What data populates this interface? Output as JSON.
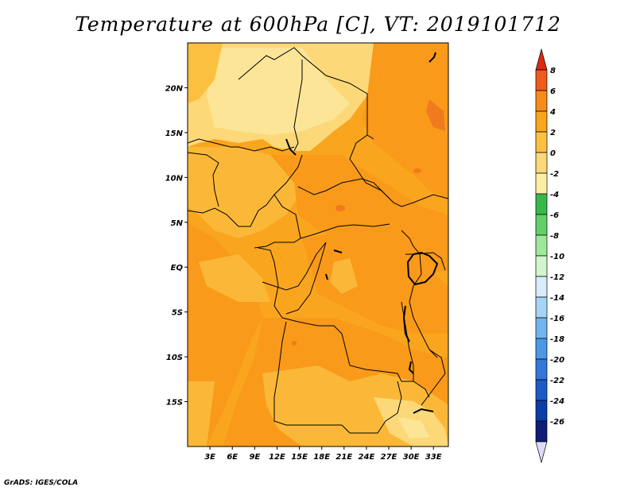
{
  "title": "Temperature at 600hPa [C], VT: 2019101712",
  "credit": "GrADS: IGES/COLA",
  "map": {
    "lon_range": [
      0,
      35
    ],
    "lat_range": [
      -20,
      25
    ],
    "lat_ticks": [
      {
        "value": 20,
        "label": "20N"
      },
      {
        "value": 15,
        "label": "15N"
      },
      {
        "value": 10,
        "label": "10N"
      },
      {
        "value": 5,
        "label": "5N"
      },
      {
        "value": 0,
        "label": "EQ"
      },
      {
        "value": -5,
        "label": "5S"
      },
      {
        "value": -10,
        "label": "10S"
      },
      {
        "value": -15,
        "label": "15S"
      }
    ],
    "lon_ticks": [
      {
        "value": 3,
        "label": "3E"
      },
      {
        "value": 6,
        "label": "6E"
      },
      {
        "value": 9,
        "label": "9E"
      },
      {
        "value": 12,
        "label": "12E"
      },
      {
        "value": 15,
        "label": "15E"
      },
      {
        "value": 18,
        "label": "18E"
      },
      {
        "value": 21,
        "label": "21E"
      },
      {
        "value": 24,
        "label": "24E"
      },
      {
        "value": 27,
        "label": "27E"
      },
      {
        "value": 30,
        "label": "30E"
      },
      {
        "value": 33,
        "label": "33E"
      }
    ]
  },
  "colorbar": {
    "labels": [
      "8",
      "6",
      "4",
      "2",
      "0",
      "-2",
      "-4",
      "-6",
      "-8",
      "-10",
      "-12",
      "-14",
      "-16",
      "-18",
      "-20",
      "-22",
      "-24",
      "-26"
    ],
    "colors": [
      "#dc2a10",
      "#f05a1e",
      "#f88a1a",
      "#faa51e",
      "#fbc040",
      "#fcd878",
      "#fdeea6",
      "#38b84a",
      "#62d066",
      "#9ee89a",
      "#d2f5cf",
      "#d8ecfa",
      "#a6d4f4",
      "#72b4ee",
      "#4c98e6",
      "#3278da",
      "#1c5ac8",
      "#0c3ca8",
      "#101c78",
      "#dcdcf8"
    ]
  }
}
